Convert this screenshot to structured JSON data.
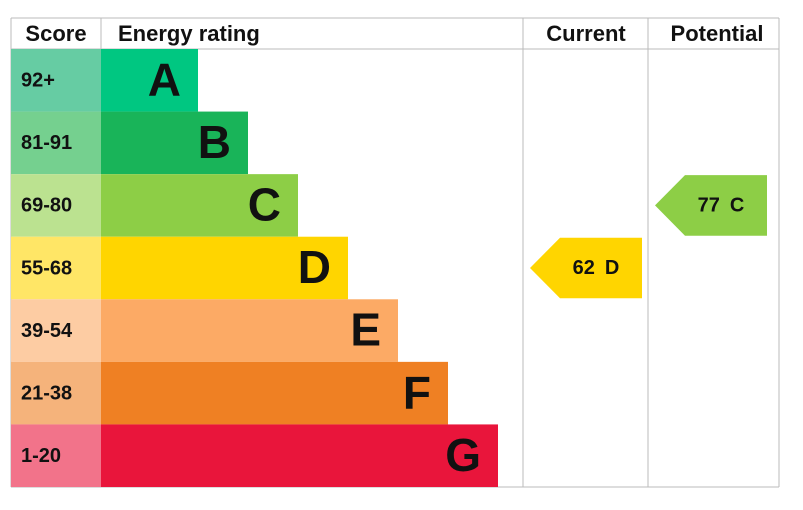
{
  "headers": {
    "score": "Score",
    "rating": "Energy rating",
    "current": "Current",
    "potential": "Potential"
  },
  "bands": [
    {
      "score": "92+",
      "letter": "A",
      "color": "#00c781",
      "score_color": "#66cca3"
    },
    {
      "score": "81-91",
      "letter": "B",
      "color": "#19b459",
      "score_color": "#75d08f"
    },
    {
      "score": "69-80",
      "letter": "C",
      "color": "#8dce46",
      "score_color": "#bbe290"
    },
    {
      "score": "55-68",
      "letter": "D",
      "color": "#ffd500",
      "score_color": "#ffe666"
    },
    {
      "score": "39-54",
      "letter": "E",
      "color": "#fcaa65",
      "score_color": "#fdcca3"
    },
    {
      "score": "21-38",
      "letter": "F",
      "color": "#ef8023",
      "score_color": "#f5b37b"
    },
    {
      "score": "1-20",
      "letter": "G",
      "color": "#e9153b",
      "score_color": "#f2738a"
    }
  ],
  "current": {
    "value": 62,
    "letter": "D",
    "color": "#ffd500"
  },
  "potential": {
    "value": 77,
    "letter": "C",
    "color": "#8dce46"
  }
}
